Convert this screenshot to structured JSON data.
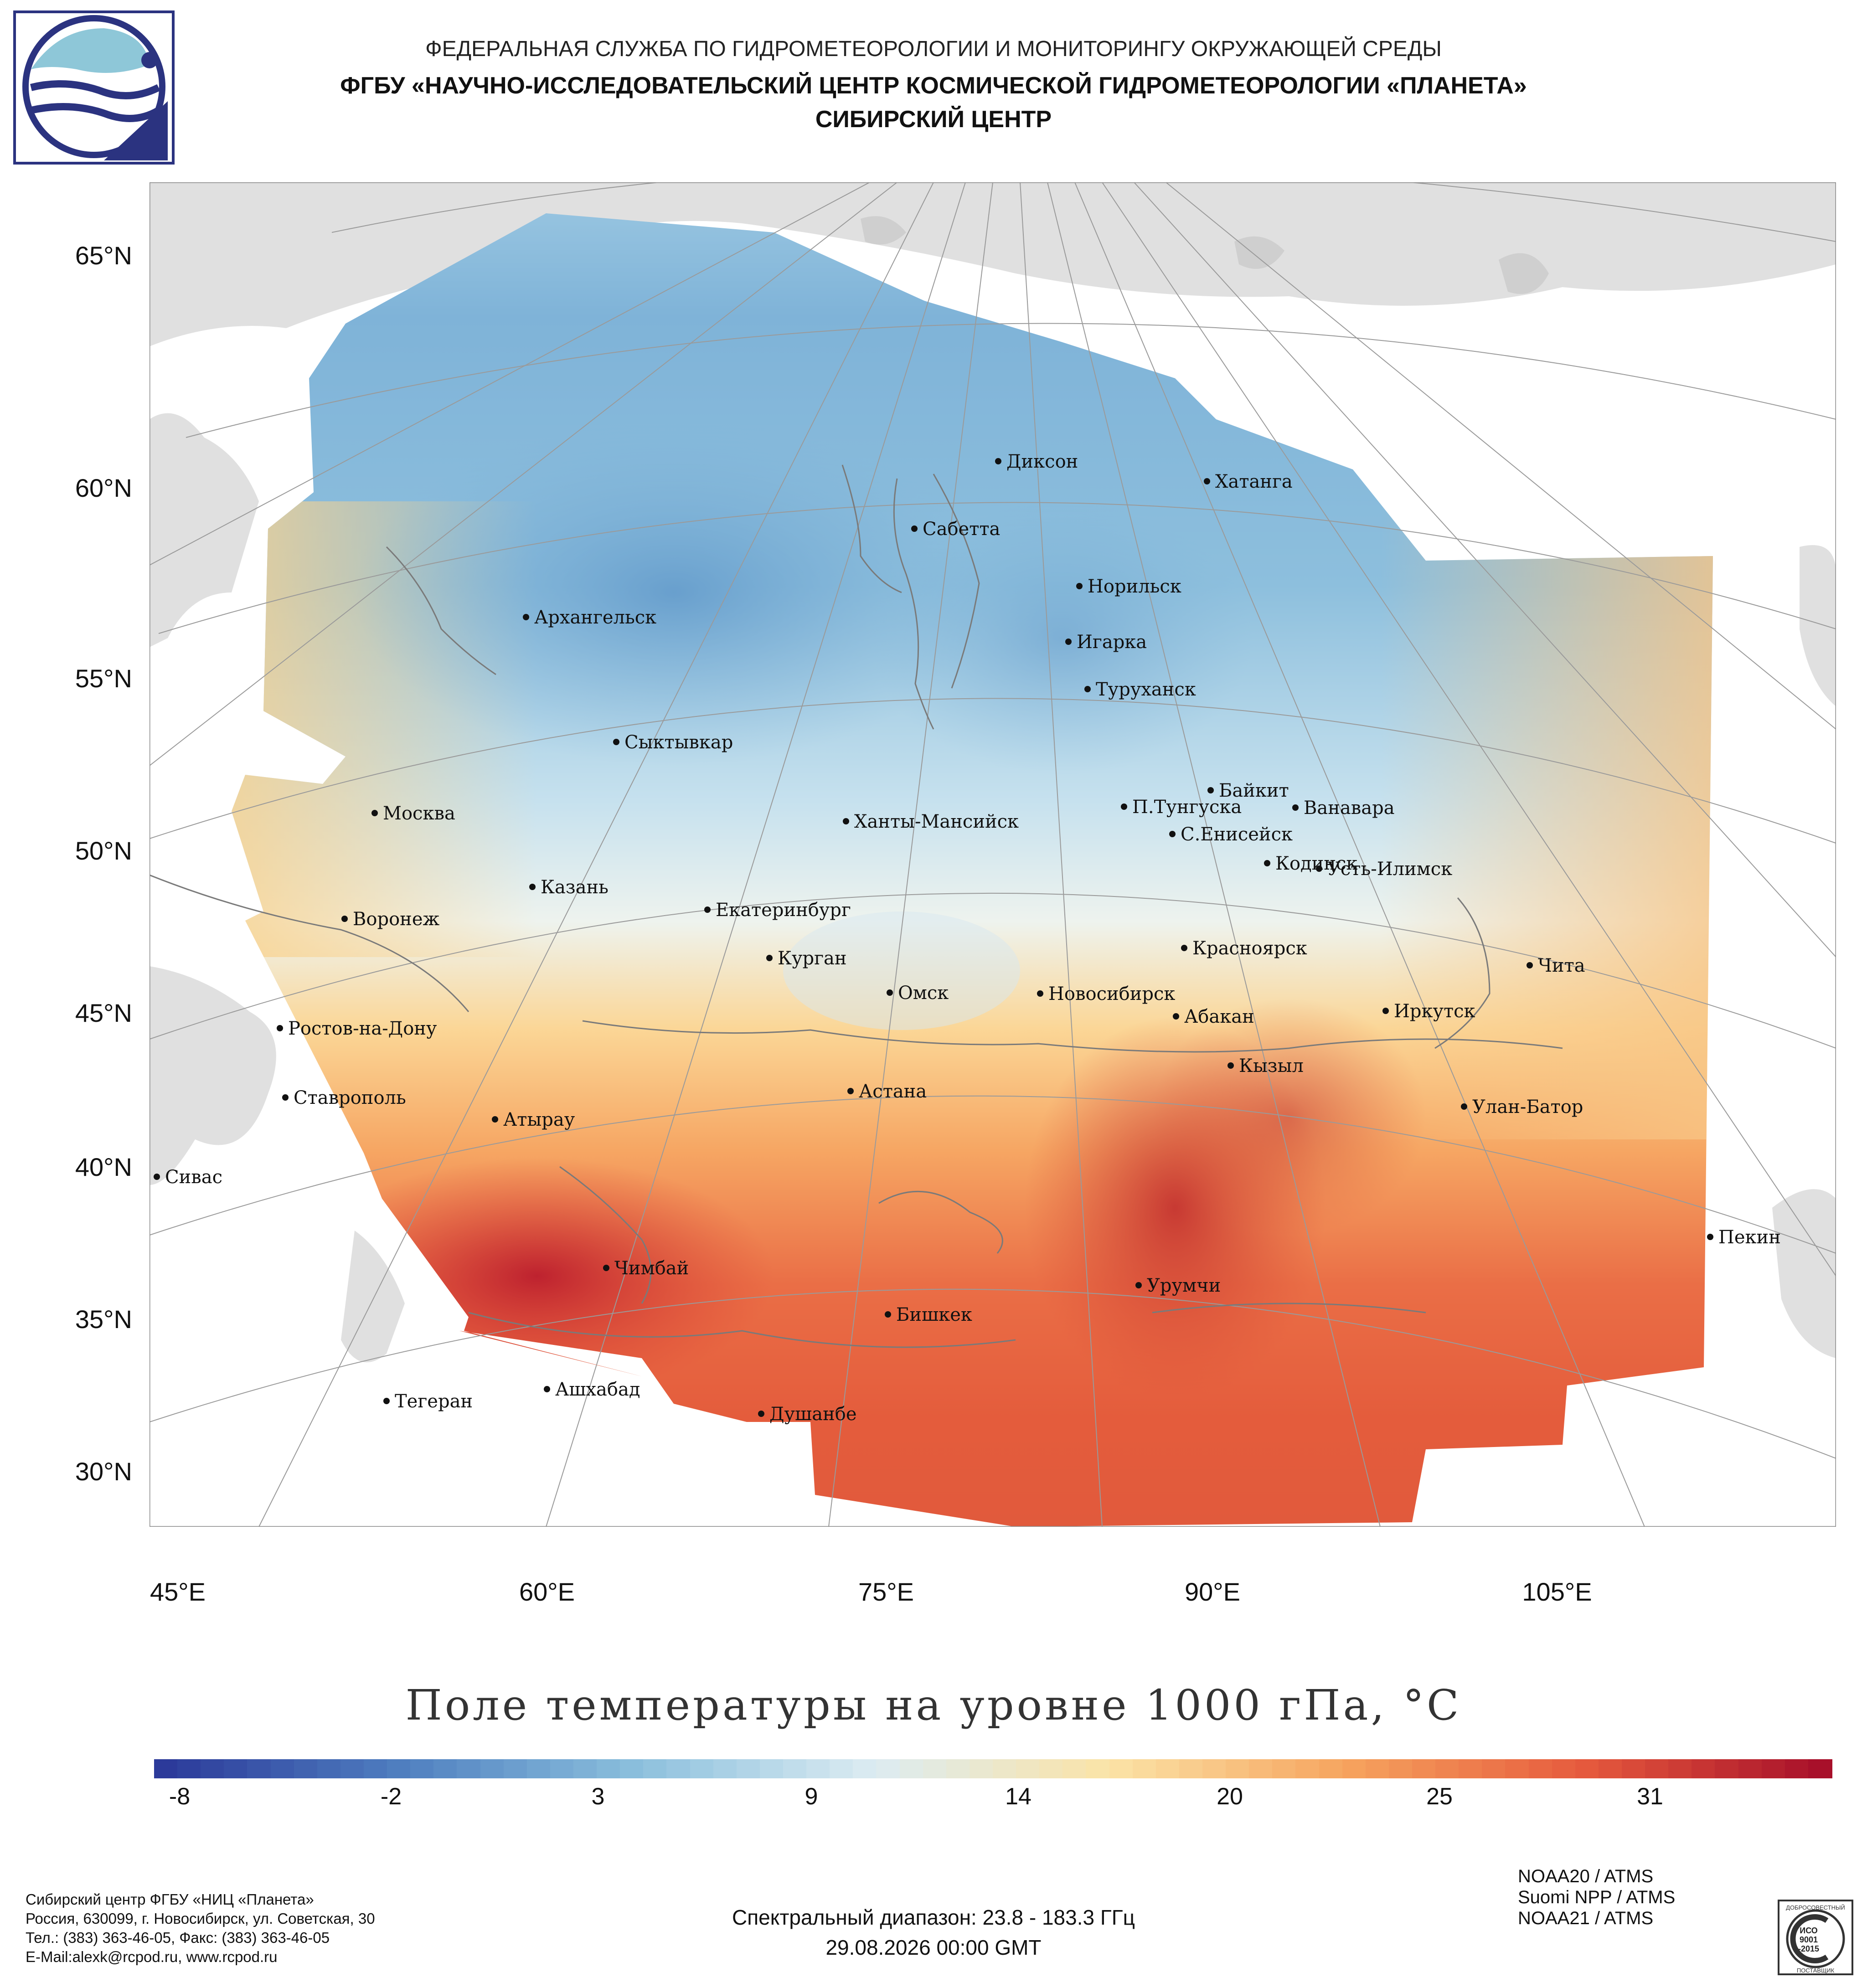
{
  "header": {
    "line1": "ФЕДЕРАЛЬНАЯ СЛУЖБА ПО ГИДРОМЕТЕОРОЛОГИИ И МОНИТОРИНГУ ОКРУЖАЮЩЕЙ СРЕДЫ",
    "line2": "ФГБУ «НАУЧНО-ИССЛЕДОВАТЕЛЬСКИЙ ЦЕНТР КОСМИЧЕСКОЙ ГИДРОМЕТЕОРОЛОГИИ «ПЛАНЕТА»",
    "line3": "СИБИРСКИЙ ЦЕНТР"
  },
  "logo": {
    "icon": "planeta-logo-icon",
    "color": "#2b3380",
    "accent": "#8ec7d8"
  },
  "map": {
    "lat_labels": [
      "65°N",
      "60°N",
      "55°N",
      "50°N",
      "45°N",
      "40°N",
      "35°N",
      "30°N"
    ],
    "lon_labels": [
      "45°E",
      "60°E",
      "75°E",
      "90°E",
      "105°E"
    ],
    "cities": [
      "Диксон",
      "Хатанга",
      "Сабетта",
      "Норильск",
      "Архангельск",
      "Игарка",
      "Туруханск",
      "Сыктывкар",
      "Байкит",
      "Москва",
      "П.Тунгуска",
      "Ванавара",
      "Ханты-Мансийск",
      "С.Енисейск",
      "Кодинск",
      "Усть-Илимск",
      "Казань",
      "Екатеринбург",
      "Воронеж",
      "Красноярск",
      "Курган",
      "Чита",
      "Омск",
      "Новосибирск",
      "Иркутск",
      "Ростов-на-Дону",
      "Абакан",
      "Кызыл",
      "Астана",
      "Ставрополь",
      "Улан-Батор",
      "Атырау",
      "Сивас",
      "Пекин",
      "Чимбай",
      "Урумчи",
      "Бишкек",
      "Ашхабад",
      "Тегеран",
      "Душанбе"
    ],
    "colors": {
      "land": "#e0e0e0",
      "water": "#ffffff",
      "border": "#8a8a8a"
    }
  },
  "map_title": "Поле температуры на уровне 1000 гПа, °C",
  "colorbar": {
    "ticks": [
      "-8",
      "-2",
      "3",
      "9",
      "14",
      "20",
      "25",
      "31"
    ],
    "stops": [
      "#2c3a9a",
      "#4f7fc0",
      "#8cc0dd",
      "#dcecf2",
      "#fbe3a6",
      "#f6a35e",
      "#e65a3d",
      "#a8102a"
    ]
  },
  "footer": {
    "org": "Сибирский центр ФГБУ «НИЦ «Планета»",
    "address": "Россия, 630099, г. Новосибирск, ул. Советская, 30",
    "phone": "Тел.: (383) 363-46-05, Факс: (383) 363-46-05",
    "email": "E-Mail:alexk@rcpod.ru, www.rcpod.ru",
    "sensors": [
      "NOAA20 / ATMS",
      "Suomi NPP / ATMS",
      "NOAA21 / ATMS"
    ],
    "spectral": "Спектральный диапазон: 23.8 - 183.3 ГГц",
    "datetime": "29.08.2026 00:00 GMT",
    "iso": {
      "icon": "iso-certificate-seal-icon",
      "top": "ДОБРОСОВЕСТНЫЙ",
      "mid1": "ИСО",
      "mid2": "9001",
      "mid3": "-2015",
      "bottom": "ПОСТАВЩИК"
    }
  }
}
